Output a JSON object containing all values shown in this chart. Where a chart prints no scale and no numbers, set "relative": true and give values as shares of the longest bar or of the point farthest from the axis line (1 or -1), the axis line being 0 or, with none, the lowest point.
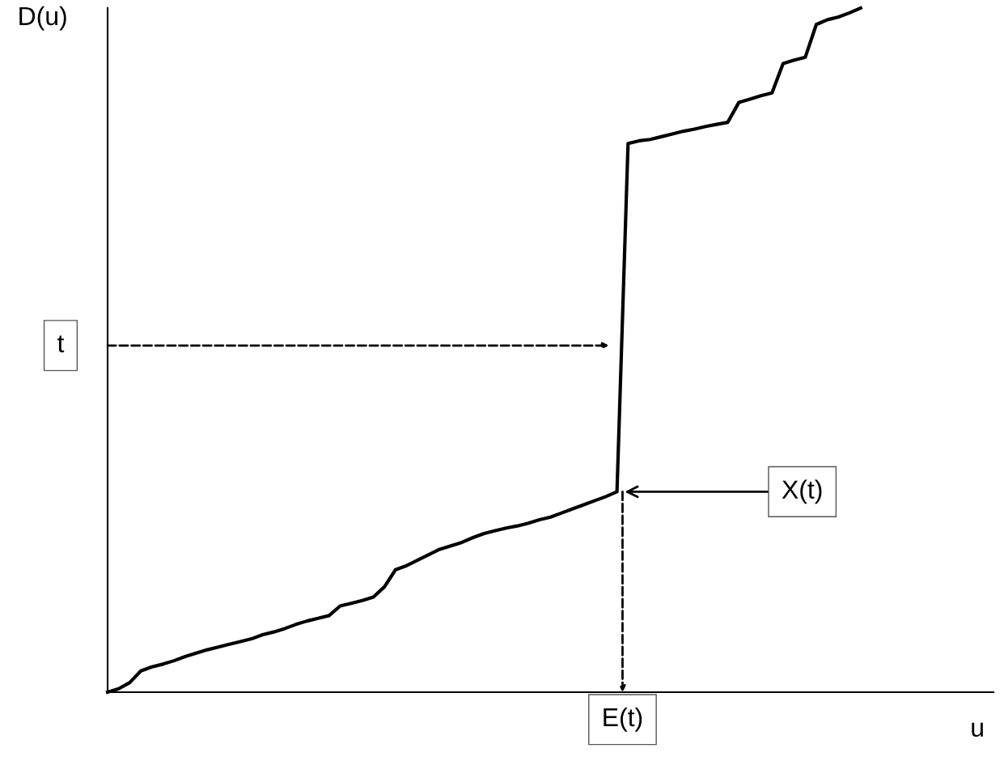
{
  "chart_data": {
    "type": "line",
    "relative": true,
    "xlabel": "u",
    "ylabel": "D(u)",
    "marker": "none",
    "line_style": "solid",
    "categories": [
      null,
      null,
      null,
      null,
      null,
      null,
      null,
      null,
      null,
      null,
      null,
      null,
      null,
      null,
      null,
      null,
      null,
      null,
      null,
      null,
      null,
      null,
      null,
      null,
      null,
      null,
      null,
      null,
      null,
      null,
      null,
      null,
      null,
      null,
      null,
      null,
      null,
      null,
      null,
      null,
      null,
      null,
      null,
      null,
      null,
      null,
      null,
      null,
      null,
      null,
      null,
      null,
      null,
      null,
      null,
      null,
      null,
      null,
      null,
      null,
      null,
      null,
      null,
      null,
      null,
      null,
      null,
      null,
      null,
      null,
      null,
      null,
      null,
      null,
      null,
      null,
      null,
      null,
      null,
      null,
      null
    ],
    "series": [
      {
        "color": "#000000",
        "values": [
          0,
          0.005,
          0.014,
          0.031,
          0.037,
          0.041,
          0.046,
          0.052,
          0.057,
          0.062,
          0.066,
          0.07,
          0.074,
          0.078,
          0.084,
          0.088,
          0.093,
          0.099,
          0.104,
          0.108,
          0.112,
          0.126,
          0.13,
          0.134,
          0.139,
          0.154,
          0.179,
          0.185,
          0.193,
          0.201,
          0.209,
          0.214,
          0.219,
          0.226,
          0.232,
          0.236,
          0.24,
          0.243,
          0.247,
          0.252,
          0.256,
          0.262,
          0.268,
          0.274,
          0.28,
          0.286,
          0.293,
          0.802,
          0.806,
          0.808,
          0.812,
          0.816,
          0.82,
          0.823,
          0.827,
          0.83,
          0.833,
          0.862,
          0.867,
          0.872,
          0.876,
          0.919,
          0.924,
          0.928,
          0.976,
          0.983,
          0.987,
          0.993,
          1.0,
          null,
          null,
          null,
          null,
          null,
          null,
          null,
          null,
          null,
          null,
          null,
          null
        ]
      }
    ],
    "annotations": [
      "t",
      "X(t)",
      "E(t)"
    ]
  }
}
